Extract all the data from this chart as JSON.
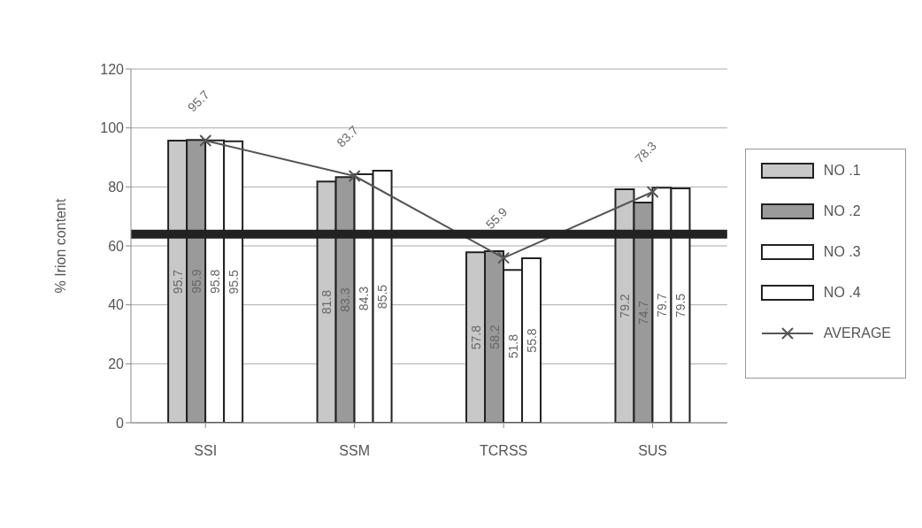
{
  "chart_data": {
    "type": "bar",
    "ylabel": "% Irion content",
    "categories": [
      "SSI",
      "SSM",
      "TCRSS",
      "SUS"
    ],
    "series": [
      {
        "name": "NO .1",
        "color": "#c8c8c8",
        "values": [
          95.7,
          81.8,
          57.8,
          79.2
        ]
      },
      {
        "name": "NO .2",
        "color": "#9a9a9a",
        "values": [
          95.9,
          83.3,
          58.2,
          74.7
        ]
      },
      {
        "name": "NO .3",
        "color": "#ffffff",
        "values": [
          95.8,
          84.3,
          51.8,
          79.7
        ]
      },
      {
        "name": "NO .4",
        "color": "#ffffff",
        "values": [
          95.5,
          85.5,
          55.8,
          79.5
        ]
      },
      {
        "name": "AVERAGE",
        "type": "line",
        "color": "#555555",
        "values": [
          95.7,
          83.7,
          55.9,
          78.3
        ]
      }
    ],
    "ylim": [
      0,
      120
    ],
    "yticks": [
      0,
      20,
      40,
      60,
      80,
      100,
      120
    ],
    "ref_lines": [
      {
        "axis": "y",
        "value": 64,
        "color": "#222222"
      }
    ],
    "grid": "y",
    "legend": "right",
    "marker": "cross",
    "data_labels": true
  }
}
